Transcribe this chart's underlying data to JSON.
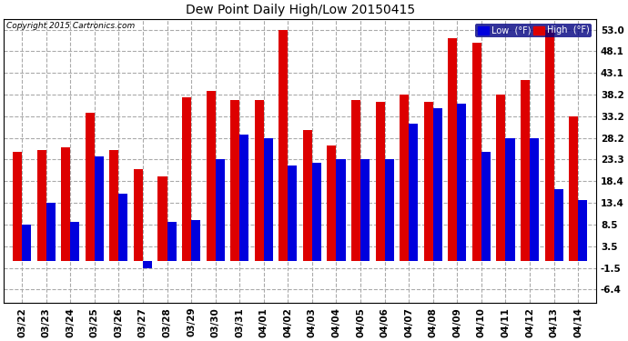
{
  "title": "Dew Point Daily High/Low 20150415",
  "copyright": "Copyright 2015 Cartronics.com",
  "yticks": [
    -6.4,
    -1.5,
    3.5,
    8.5,
    13.4,
    18.4,
    23.3,
    28.2,
    33.2,
    38.2,
    43.1,
    48.1,
    53.0
  ],
  "ylim": [
    -9.5,
    55.5
  ],
  "background_color": "#ffffff",
  "bar_color_low": "#0000dd",
  "bar_color_high": "#dd0000",
  "dates": [
    "03/22",
    "03/23",
    "03/24",
    "03/25",
    "03/26",
    "03/27",
    "03/28",
    "03/29",
    "03/30",
    "03/31",
    "04/01",
    "04/02",
    "04/03",
    "04/04",
    "04/05",
    "04/06",
    "04/07",
    "04/08",
    "04/09",
    "04/10",
    "04/11",
    "04/12",
    "04/13",
    "04/14"
  ],
  "highs": [
    25.0,
    25.5,
    26.0,
    34.0,
    25.5,
    21.0,
    19.5,
    37.5,
    39.0,
    37.0,
    37.0,
    53.0,
    30.0,
    26.5,
    37.0,
    36.5,
    38.2,
    36.5,
    51.0,
    50.0,
    38.2,
    41.5,
    53.0,
    33.2
  ],
  "lows": [
    8.5,
    13.4,
    9.0,
    24.0,
    15.5,
    -1.5,
    9.0,
    9.5,
    23.3,
    29.0,
    28.2,
    22.0,
    22.5,
    23.3,
    23.3,
    23.3,
    31.5,
    35.0,
    36.0,
    25.0,
    28.2,
    28.2,
    16.5,
    14.0
  ]
}
